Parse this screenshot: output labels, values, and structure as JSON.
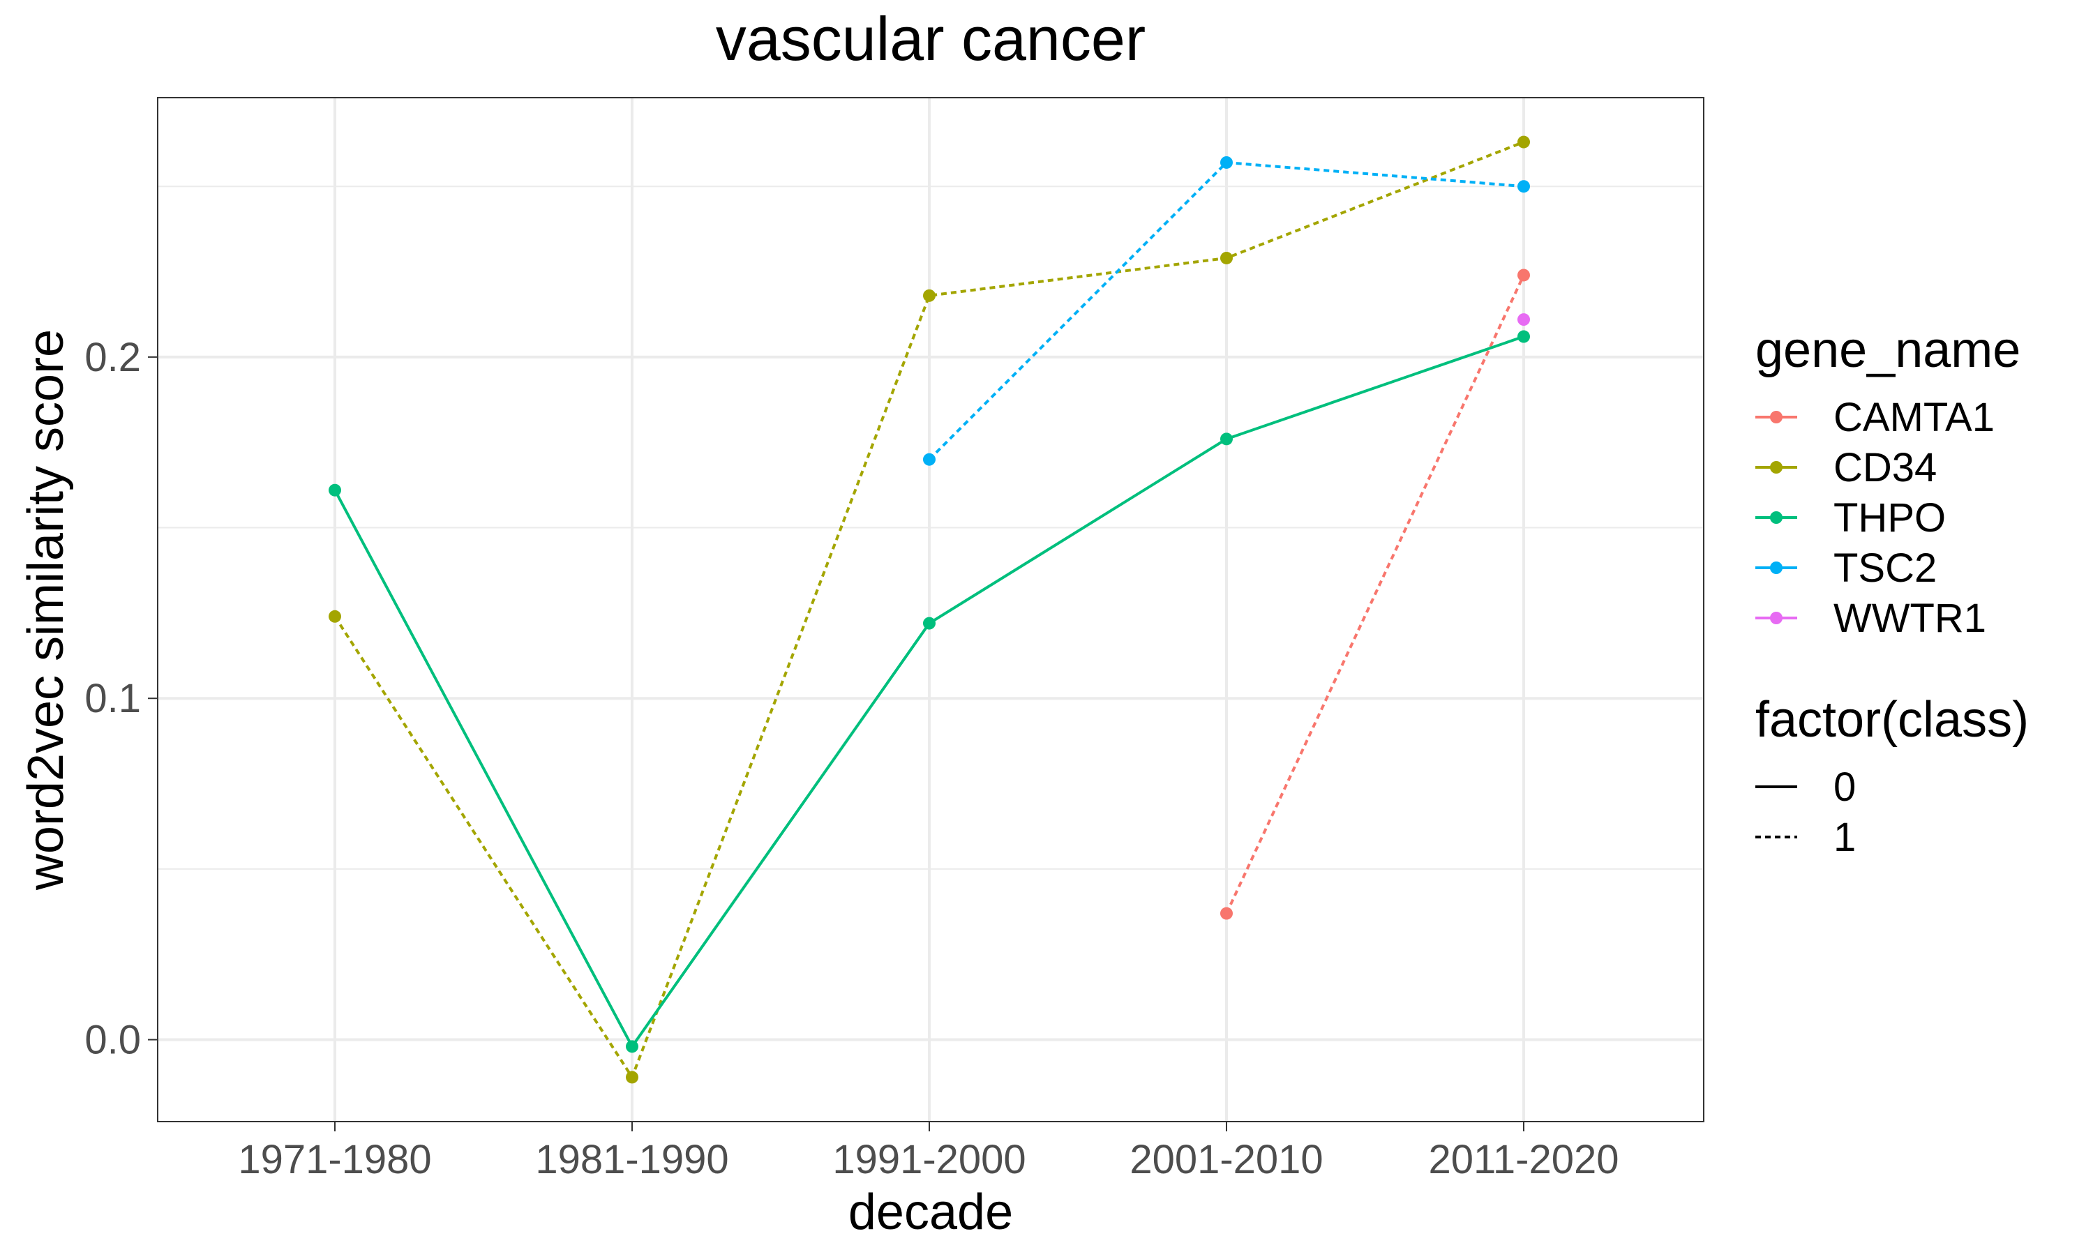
{
  "chart_data": {
    "type": "line",
    "title": "vascular cancer",
    "xlabel": "decade",
    "ylabel": "word2vec similarity score",
    "categories": [
      "1971-1980",
      "1981-1990",
      "1991-2000",
      "2001-2010",
      "2011-2020"
    ],
    "ylim": [
      -0.024,
      0.276
    ],
    "yticks": [
      0.0,
      0.1,
      0.2
    ],
    "ytick_labels": [
      "0.0",
      "0.1",
      "0.2"
    ],
    "grid": true,
    "legend_position": "right",
    "series": [
      {
        "name": "CAMTA1",
        "color": "#F8766D",
        "class": "1",
        "values": [
          null,
          null,
          null,
          0.037,
          0.224
        ]
      },
      {
        "name": "CD34",
        "color": "#A3A500",
        "class": "1",
        "values": [
          0.124,
          -0.011,
          0.218,
          0.229,
          0.263
        ]
      },
      {
        "name": "THPO",
        "color": "#00BF7D",
        "class": "0",
        "values": [
          0.161,
          -0.002,
          0.122,
          0.176,
          0.206
        ]
      },
      {
        "name": "TSC2",
        "color": "#00B0F6",
        "class": "1",
        "values": [
          null,
          null,
          0.17,
          0.257,
          0.25
        ]
      },
      {
        "name": "WWTR1",
        "color": "#E76BF3",
        "class": "1",
        "values": [
          null,
          null,
          null,
          null,
          0.211
        ]
      }
    ],
    "legends": [
      {
        "title": "gene_name",
        "kind": "color",
        "entries": [
          "CAMTA1",
          "CD34",
          "THPO",
          "TSC2",
          "WWTR1"
        ]
      },
      {
        "title": "factor(class)",
        "kind": "linetype",
        "entries": [
          "0",
          "1"
        ]
      }
    ]
  }
}
